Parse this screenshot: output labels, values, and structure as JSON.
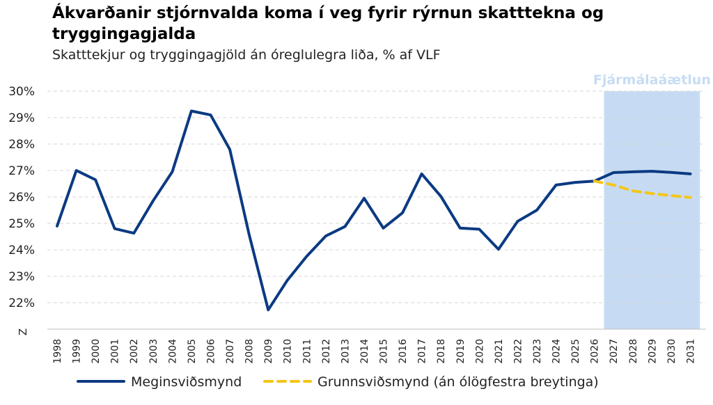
{
  "chart_data": {
    "type": "line",
    "title": "Ákvarðanir stjórnvalda koma í veg fyrir rýrnun skatttekna og tryggingagjalda",
    "subtitle": "Skatttekjur og tryggingagjöld án óreglulegra liða, % af VLF",
    "axis_break_label": "Z",
    "x": [
      "1998",
      "1999",
      "2000",
      "2001",
      "2002",
      "2003",
      "2004",
      "2005",
      "2006",
      "2007",
      "2008",
      "2009",
      "2010",
      "2011",
      "2012",
      "2013",
      "2014",
      "2015",
      "2016",
      "2017",
      "2018",
      "2019",
      "2020",
      "2021",
      "2022",
      "2023",
      "2024",
      "2025",
      "2026",
      "2027",
      "2028",
      "2029",
      "2030",
      "2031"
    ],
    "y_ticks": [
      "22%",
      "23%",
      "24%",
      "25%",
      "26%",
      "27%",
      "28%",
      "29%",
      "30%"
    ],
    "ylim": [
      21,
      30
    ],
    "grid": true,
    "shaded_region": {
      "label": "Fjármálaáætlun",
      "from": "2026.5",
      "to": "2031.5",
      "color": "#c6dbf3"
    },
    "series": [
      {
        "name": "Meginsviðsmynd",
        "color": "#0b3a82",
        "style": "solid",
        "x": [
          "1998",
          "1999",
          "2000",
          "2001",
          "2002",
          "2003",
          "2004",
          "2005",
          "2006",
          "2007",
          "2008",
          "2009",
          "2010",
          "2011",
          "2012",
          "2013",
          "2014",
          "2015",
          "2016",
          "2017",
          "2018",
          "2019",
          "2020",
          "2021",
          "2022",
          "2023",
          "2024",
          "2025",
          "2026",
          "2027",
          "2028",
          "2029",
          "2030",
          "2031"
        ],
        "values": [
          24.9,
          27.0,
          26.65,
          24.8,
          24.63,
          25.85,
          26.95,
          29.25,
          29.1,
          27.8,
          24.6,
          21.73,
          22.85,
          23.75,
          24.52,
          24.88,
          25.95,
          24.82,
          25.4,
          26.87,
          26.02,
          24.82,
          24.78,
          24.02,
          25.08,
          25.5,
          26.45,
          26.55,
          26.6,
          26.92,
          26.95,
          26.97,
          26.93,
          26.87
        ]
      },
      {
        "name": "Grunnsviðsmynd (án ólögfestra breytinga)",
        "color": "#f5c518",
        "style": "dashed",
        "x": [
          "2026",
          "2027",
          "2028",
          "2029",
          "2030",
          "2031"
        ],
        "values": [
          26.6,
          26.45,
          26.23,
          26.13,
          26.05,
          25.98
        ]
      }
    ],
    "legend_position": "bottom"
  }
}
